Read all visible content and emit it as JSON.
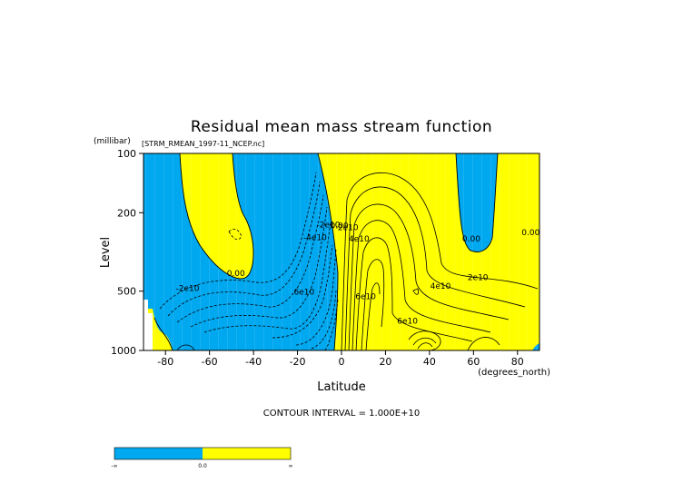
{
  "chart_data": {
    "type": "heatmap",
    "title": "Residual mean mass stream function",
    "subtitle": "[STRM_RMEAN_1997-11_NCEP.nc]",
    "xlabel": "Latitude",
    "x_units": "(degrees_north)",
    "ylabel": "Level",
    "y_units": "(millibar)",
    "xlim": [
      -90,
      90
    ],
    "ylim": [
      1000,
      100
    ],
    "y_scale": "log",
    "x_ticks": [
      -80,
      -60,
      -40,
      -20,
      0,
      20,
      40,
      60,
      80
    ],
    "y_ticks": [
      100,
      200,
      500,
      1000
    ],
    "contour_interval_text": "CONTOUR INTERVAL = 1.000E+10",
    "colors": {
      "negative": "#00a8f0",
      "positive": "#ffff00"
    },
    "contour_labels": [
      {
        "text": "0.00",
        "x": -48,
        "y": 420
      },
      {
        "text": "-2e10",
        "x": -70,
        "y": 500
      },
      {
        "text": "-4e10",
        "x": -12,
        "y": 275
      },
      {
        "text": "-2e10",
        "x": -6,
        "y": 238
      },
      {
        "text": "0.00",
        "x": -1,
        "y": 240
      },
      {
        "text": "2e10",
        "x": 3,
        "y": 245
      },
      {
        "text": "4e10",
        "x": 8,
        "y": 280
      },
      {
        "text": "6e10",
        "x": -17,
        "y": 520
      },
      {
        "text": "6e10",
        "x": 11,
        "y": 550
      },
      {
        "text": "2e10",
        "x": 62,
        "y": 440
      },
      {
        "text": "4e10",
        "x": 45,
        "y": 485
      },
      {
        "text": "6e10",
        "x": 30,
        "y": 730
      },
      {
        "text": "0.00",
        "x": 59,
        "y": 280
      },
      {
        "text": "0.00",
        "x": 86,
        "y": 260
      }
    ]
  },
  "colorbar": {
    "labels": [
      "-∞",
      "0.0",
      "∞"
    ]
  }
}
